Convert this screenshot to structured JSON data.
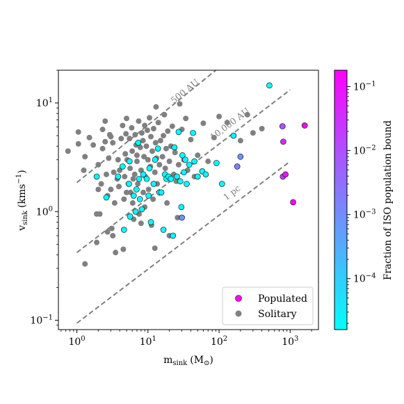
{
  "chart_data": {
    "type": "scatter",
    "xlabel": {
      "main": "m",
      "sub": "sink",
      "units": "(M",
      "unit_sub": "⊙",
      "close": ")"
    },
    "ylabel": {
      "main": "v",
      "sub": "sink",
      "units": "(kms",
      "unit_sup": "−1",
      "close": ")"
    },
    "x_scale": "log",
    "y_scale": "log",
    "xlim": [
      0.55,
      2500
    ],
    "ylim": [
      0.082,
      20
    ],
    "x_ticks": [
      {
        "value": 1,
        "base": "10",
        "exp": "0"
      },
      {
        "value": 10,
        "base": "10",
        "exp": "1"
      },
      {
        "value": 100,
        "base": "10",
        "exp": "2"
      },
      {
        "value": 1000,
        "base": "10",
        "exp": "3"
      }
    ],
    "y_ticks": [
      {
        "value": 0.1,
        "base": "10",
        "exp": "−1"
      },
      {
        "value": 1,
        "base": "10",
        "exp": "0"
      },
      {
        "value": 10,
        "base": "10",
        "exp": "1"
      }
    ],
    "reference_lines": [
      {
        "label": "500 AU",
        "points": [
          [
            1,
            1.85
          ],
          [
            90,
            20
          ]
        ],
        "label_at": [
          35,
          12.2
        ]
      },
      {
        "label": "10,000 AU",
        "points": [
          [
            1,
            0.42
          ],
          [
            1000,
            13.2
          ]
        ],
        "label_at": [
          150,
          6.1
        ]
      },
      {
        "label": "1 pc",
        "points": [
          [
            1,
            0.094
          ],
          [
            1000,
            2.9
          ]
        ],
        "label_at": [
          160,
          1.42
        ]
      }
    ],
    "reference_line_color": "#7f7f7f",
    "grid": false,
    "legend": {
      "position": "bottom-right",
      "entries": [
        {
          "label": "Populated",
          "color": "#ff00ff"
        },
        {
          "label": "Solitary",
          "color": "#808080"
        }
      ]
    },
    "colorbar": {
      "label": "Fraction of ISO population bound",
      "scale": "log",
      "range": [
        1.6e-05,
        0.18
      ],
      "colors": [
        "#00ffff",
        "#ff00ff"
      ],
      "ticks": [
        {
          "value": 0.1,
          "base": "10",
          "exp": "−1"
        },
        {
          "value": 0.01,
          "base": "10",
          "exp": "−2"
        },
        {
          "value": 0.001,
          "base": "10",
          "exp": "−3"
        },
        {
          "value": 0.0001,
          "base": "10",
          "exp": "−4"
        }
      ]
    },
    "series": [
      {
        "name": "Solitary",
        "color": "#808080",
        "points": [
          [
            0.75,
            3.6
          ],
          [
            1.05,
            5.4
          ],
          [
            1.05,
            4.2
          ],
          [
            1.25,
            2.4
          ],
          [
            1.3,
            3.2
          ],
          [
            1.3,
            0.33
          ],
          [
            1.5,
            4.8
          ],
          [
            1.7,
            4.1
          ],
          [
            1.9,
            0.95
          ],
          [
            2.0,
            1.6
          ],
          [
            2.0,
            2.7
          ],
          [
            2.1,
            0.95
          ],
          [
            2.2,
            1.8
          ],
          [
            2.3,
            5.7
          ],
          [
            2.3,
            3.8
          ],
          [
            2.5,
            6.8
          ],
          [
            2.5,
            4.4
          ],
          [
            2.6,
            2.2
          ],
          [
            2.7,
            1.4
          ],
          [
            2.7,
            0.65
          ],
          [
            2.8,
            3.1
          ],
          [
            2.9,
            5.1
          ],
          [
            3.0,
            4.9
          ],
          [
            3.0,
            1.6
          ],
          [
            3.1,
            0.7
          ],
          [
            3.2,
            4.3
          ],
          [
            3.3,
            2.3
          ],
          [
            3.4,
            1.2
          ],
          [
            3.5,
            0.42
          ],
          [
            3.7,
            2.0
          ],
          [
            3.8,
            3.0
          ],
          [
            3.9,
            1.7
          ],
          [
            4.0,
            2.4
          ],
          [
            4.2,
            4.7
          ],
          [
            4.4,
            6.2
          ],
          [
            4.5,
            0.45
          ],
          [
            4.6,
            1.3
          ],
          [
            4.7,
            2.1
          ],
          [
            4.8,
            3.4
          ],
          [
            4.9,
            5.2
          ],
          [
            5.0,
            7.2
          ],
          [
            5.1,
            3.0
          ],
          [
            5.3,
            1.8
          ],
          [
            5.5,
            4.7
          ],
          [
            5.6,
            2.5
          ],
          [
            5.7,
            1.5
          ],
          [
            5.9,
            5.9
          ],
          [
            6.0,
            3.6
          ],
          [
            6.1,
            1.2
          ],
          [
            6.3,
            0.85
          ],
          [
            6.5,
            2.2
          ],
          [
            6.6,
            5.1
          ],
          [
            6.8,
            4.1
          ],
          [
            7.0,
            2.9
          ],
          [
            7.2,
            1.8
          ],
          [
            7.4,
            6.8
          ],
          [
            7.5,
            0.95
          ],
          [
            7.8,
            3.9
          ],
          [
            8.0,
            2.4
          ],
          [
            8.2,
            5.3
          ],
          [
            8.5,
            4.5
          ],
          [
            8.6,
            1.5
          ],
          [
            8.8,
            3.2
          ],
          [
            9.0,
            6.2
          ],
          [
            9.2,
            2.1
          ],
          [
            9.5,
            4.0
          ],
          [
            9.8,
            5.6
          ],
          [
            10.0,
            3.0
          ],
          [
            10.2,
            1.6
          ],
          [
            10.5,
            7.3
          ],
          [
            10.8,
            2.6
          ],
          [
            11.0,
            4.9
          ],
          [
            11.2,
            0.75
          ],
          [
            11.5,
            3.6
          ],
          [
            11.8,
            1.3
          ],
          [
            12.0,
            5.8
          ],
          [
            12.5,
            2.3
          ],
          [
            12.8,
            4.3
          ],
          [
            13.0,
            9.2
          ],
          [
            13.2,
            3.1
          ],
          [
            13.5,
            1.8
          ],
          [
            14.0,
            6.6
          ],
          [
            14.5,
            2.7
          ],
          [
            15.0,
            4.5
          ],
          [
            15.5,
            1.5
          ],
          [
            16.0,
            3.2
          ],
          [
            16.5,
            5.0
          ],
          [
            17.0,
            7.8
          ],
          [
            17.5,
            2.5
          ],
          [
            18.0,
            3.8
          ],
          [
            18.5,
            1.2
          ],
          [
            19.0,
            5.5
          ],
          [
            20.0,
            2.9
          ],
          [
            21.0,
            4.0
          ],
          [
            22.0,
            6.1
          ],
          [
            23.0,
            2.2
          ],
          [
            24.0,
            3.5
          ],
          [
            25.0,
            1.9
          ],
          [
            26.0,
            0.88
          ],
          [
            27.0,
            2.7
          ],
          [
            28.0,
            9.8
          ],
          [
            30.0,
            5.7
          ],
          [
            32.0,
            3.0
          ],
          [
            34.0,
            7.2
          ],
          [
            36.0,
            2.4
          ],
          [
            40.0,
            4.6
          ],
          [
            45.0,
            2.1
          ],
          [
            50.0,
            3.3
          ],
          [
            60.0,
            6.5
          ],
          [
            70.0,
            2.9
          ],
          [
            85.0,
            4.8
          ],
          [
            100.0,
            7.5
          ],
          [
            130.0,
            6.6
          ],
          [
            200.0,
            4.5
          ],
          [
            250.0,
            7.8
          ],
          [
            300.0,
            5.3
          ],
          [
            400.0,
            5.8
          ],
          [
            1.9,
            0.52
          ],
          [
            3.2,
            0.6
          ],
          [
            8.0,
            0.78
          ],
          [
            12.5,
            0.46
          ],
          [
            20.0,
            0.6
          ],
          [
            7.0,
            3.3
          ],
          [
            9.0,
            1.1
          ],
          [
            6.2,
            2.0
          ],
          [
            5.0,
            1.5
          ]
        ]
      },
      {
        "name": "Populated",
        "points": [
          [
            1.9,
            2.1,
            2e-05
          ],
          [
            2.6,
            1.35,
            2e-05
          ],
          [
            3.8,
            2.1,
            2e-05
          ],
          [
            4.4,
            2.6,
            2e-05
          ],
          [
            4.6,
            0.68,
            2e-05
          ],
          [
            5.4,
            1.8,
            2e-05
          ],
          [
            5.5,
            2.9,
            2e-05
          ],
          [
            5.6,
            0.9,
            2e-05
          ],
          [
            6.3,
            1.4,
            2e-05
          ],
          [
            6.7,
            1.0,
            2e-05
          ],
          [
            6.9,
            1.6,
            2e-05
          ],
          [
            7.3,
            4.3,
            2e-05
          ],
          [
            7.5,
            2.0,
            2e-05
          ],
          [
            7.7,
            1.3,
            2e-05
          ],
          [
            8.2,
            1.05,
            2e-05
          ],
          [
            8.6,
            2.2,
            2e-05
          ],
          [
            9.6,
            2.0,
            2e-05
          ],
          [
            10.2,
            1.4,
            2e-05
          ],
          [
            10.5,
            2.5,
            2e-05
          ],
          [
            11.0,
            0.8,
            2e-05
          ],
          [
            12.0,
            1.8,
            2e-05
          ],
          [
            12.6,
            3.0,
            2e-05
          ],
          [
            13.8,
            3.8,
            2e-05
          ],
          [
            14.5,
            1.5,
            2e-05
          ],
          [
            15.4,
            1.5,
            2e-05
          ],
          [
            16.5,
            0.68,
            2e-05
          ],
          [
            17.3,
            2.2,
            2e-05
          ],
          [
            18.2,
            2.0,
            2e-05
          ],
          [
            19.5,
            2.1,
            2e-05
          ],
          [
            21.0,
            2.0,
            2e-05
          ],
          [
            22.5,
            0.6,
            2e-05
          ],
          [
            23.5,
            3.9,
            2e-05
          ],
          [
            25.5,
            2.1,
            2e-05
          ],
          [
            27.0,
            5.4,
            2e-05
          ],
          [
            28.5,
            1.9,
            2e-05
          ],
          [
            29.5,
            1.1,
            2e-05
          ],
          [
            30.5,
            3.3,
            2e-05
          ],
          [
            32.0,
            2.3,
            2e-05
          ],
          [
            33.5,
            3.0,
            2e-05
          ],
          [
            35.0,
            1.8,
            2e-05
          ],
          [
            38.0,
            2.7,
            2e-05
          ],
          [
            43.0,
            5.3,
            2e-05
          ],
          [
            45.0,
            2.9,
            2e-05
          ],
          [
            50.0,
            2.1,
            2e-05
          ],
          [
            58.0,
            2.35,
            2e-05
          ],
          [
            65.0,
            2.2,
            2e-05
          ],
          [
            92.0,
            2.8,
            2e-05
          ],
          [
            110.0,
            1.8,
            2e-05
          ],
          [
            160.0,
            5.0,
            2e-05
          ],
          [
            510.0,
            14.5,
            2e-05
          ],
          [
            30.0,
            0.88,
            0.0007
          ],
          [
            180.0,
            2.6,
            0.0015
          ],
          [
            200.0,
            3.2,
            0.0009
          ],
          [
            780.0,
            6.1,
            0.009
          ],
          [
            800.0,
            4.4,
            0.04
          ],
          [
            790.0,
            2.1,
            0.02
          ],
          [
            860.0,
            2.2,
            0.08
          ],
          [
            1100.0,
            1.22,
            0.15
          ],
          [
            1600.0,
            6.2,
            0.15
          ]
        ]
      }
    ]
  }
}
